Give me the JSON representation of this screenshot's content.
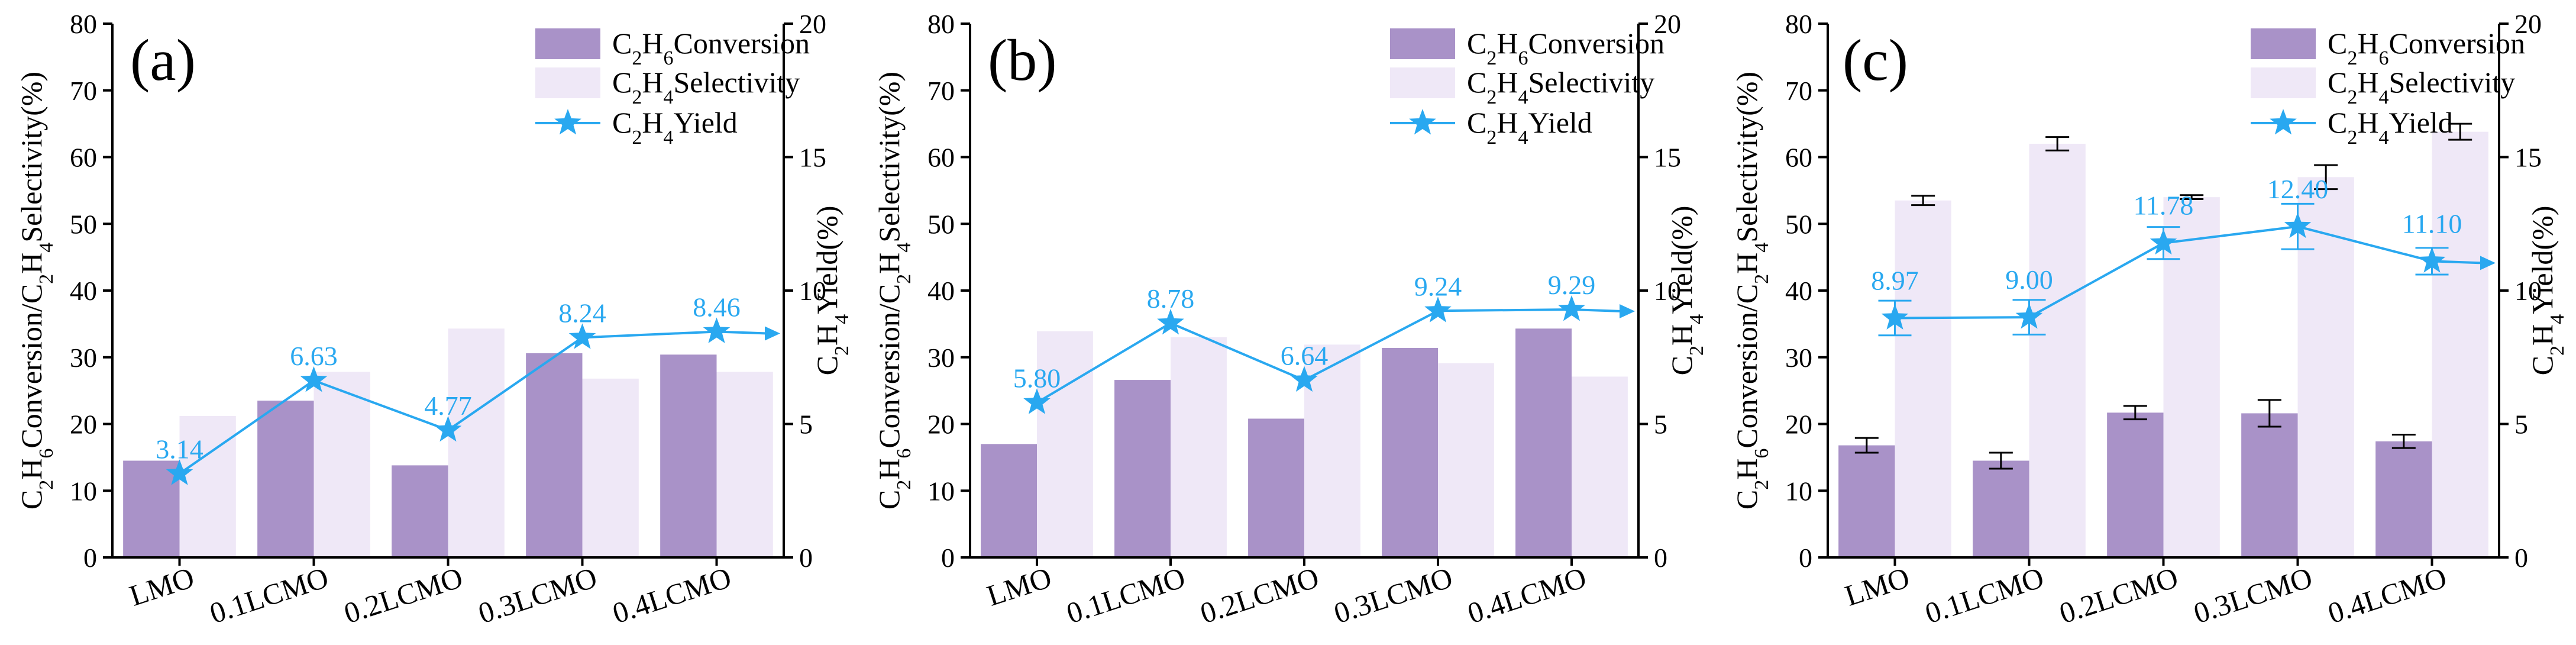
{
  "colors": {
    "conversion": "#a992c8",
    "selectivity": "#efe8f7",
    "yield": "#29a8f0"
  },
  "legend": {
    "conversion": "C2H6Conversion",
    "selectivity": "C2H4Selectivity",
    "yield": "C2H4Yield"
  },
  "chart_data": [
    {
      "type": "bar",
      "panel": "(a)",
      "categories": [
        "LMO",
        "0.1LCMO",
        "0.2LCMO",
        "0.3LCMO",
        "0.4LCMO"
      ],
      "series": [
        {
          "name": "C2H6Conversion",
          "axis": "left",
          "values": [
            14.5,
            23.5,
            13.8,
            30.6,
            30.4
          ]
        },
        {
          "name": "C2H4Selectivity",
          "axis": "left",
          "values": [
            21.2,
            27.8,
            34.3,
            26.8,
            27.8
          ]
        },
        {
          "name": "C2H4Yield",
          "axis": "right",
          "kind": "line",
          "values": [
            3.14,
            6.63,
            4.77,
            8.24,
            8.46
          ]
        }
      ],
      "yield_labels": [
        "3.14",
        "6.63",
        "4.77",
        "8.24",
        "8.46"
      ],
      "ylabel": "C2H6Conversion/C2H4Selectivity(%)",
      "y2label": "C2H4Yield(%)",
      "ylim": [
        0,
        80
      ],
      "y2lim": [
        0,
        20
      ],
      "yticks": [
        "0",
        "10",
        "20",
        "30",
        "40",
        "50",
        "60",
        "70",
        "80"
      ],
      "y2ticks": [
        "0",
        "5",
        "10",
        "15",
        "20"
      ],
      "legend_position": "top-right",
      "has_error_bars": false
    },
    {
      "type": "bar",
      "panel": "(b)",
      "categories": [
        "LMO",
        "0.1LCMO",
        "0.2LCMO",
        "0.3LCMO",
        "0.4LCMO"
      ],
      "series": [
        {
          "name": "C2H6Conversion",
          "axis": "left",
          "values": [
            17.0,
            26.6,
            20.8,
            31.4,
            34.3
          ]
        },
        {
          "name": "C2H4Selectivity",
          "axis": "left",
          "values": [
            33.9,
            33.0,
            31.9,
            29.1,
            27.1
          ]
        },
        {
          "name": "C2H4Yield",
          "axis": "right",
          "kind": "line",
          "values": [
            5.8,
            8.78,
            6.64,
            9.24,
            9.29
          ]
        }
      ],
      "yield_labels": [
        "5.80",
        "8.78",
        "6.64",
        "9.24",
        "9.29"
      ],
      "ylabel": "C2H6Conversion/C2H4Selectivity(%)",
      "y2label": "C2H4Yield(%)",
      "ylim": [
        0,
        80
      ],
      "y2lim": [
        0,
        20
      ],
      "yticks": [
        "0",
        "10",
        "20",
        "30",
        "40",
        "50",
        "60",
        "70",
        "80"
      ],
      "y2ticks": [
        "0",
        "5",
        "10",
        "15",
        "20"
      ],
      "legend_position": "top-right",
      "has_error_bars": false
    },
    {
      "type": "bar",
      "panel": "(c)",
      "categories": [
        "LMO",
        "0.1LCMO",
        "0.2LCMO",
        "0.3LCMO",
        "0.4LCMO"
      ],
      "series": [
        {
          "name": "C2H6Conversion",
          "axis": "left",
          "values": [
            16.8,
            14.5,
            21.7,
            21.6,
            17.4
          ],
          "errors": [
            1.1,
            1.2,
            1.0,
            2.0,
            1.0
          ]
        },
        {
          "name": "C2H4Selectivity",
          "axis": "left",
          "values": [
            53.5,
            62.0,
            54.0,
            57.0,
            63.8
          ],
          "errors": [
            0.7,
            1.0,
            0.3,
            1.8,
            1.2
          ]
        },
        {
          "name": "C2H4Yield",
          "axis": "right",
          "kind": "line",
          "values": [
            8.97,
            9.0,
            11.78,
            12.4,
            11.1
          ],
          "errors": [
            0.65,
            0.65,
            0.6,
            0.85,
            0.5
          ]
        }
      ],
      "yield_labels": [
        "8.97",
        "9.00",
        "11.78",
        "12.40",
        "11.10"
      ],
      "ylabel": "C2H6Conversion/C2H4Selectivity(%)",
      "y2label": "C2H4Yield(%)",
      "ylim": [
        0,
        80
      ],
      "y2lim": [
        0,
        20
      ],
      "yticks": [
        "0",
        "10",
        "20",
        "30",
        "40",
        "50",
        "60",
        "70",
        "80"
      ],
      "y2ticks": [
        "0",
        "5",
        "10",
        "15",
        "20"
      ],
      "legend_position": "top-right",
      "has_error_bars": true
    }
  ]
}
